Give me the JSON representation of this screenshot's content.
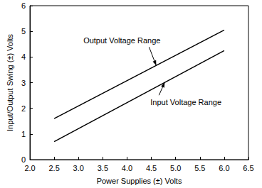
{
  "chart_data": {
    "type": "line",
    "x_label": "Power Supplies (±) Volts",
    "y_label": "Input/Output Swing (±) Volts",
    "series": [
      {
        "name": "Output Voltage Range",
        "color": "#000000",
        "x": [
          2.5,
          6.0
        ],
        "values": [
          1.6,
          5.05
        ]
      },
      {
        "name": "Input Voltage Range",
        "color": "#000000",
        "x": [
          2.5,
          6.0
        ],
        "values": [
          0.7,
          4.25
        ]
      }
    ],
    "annotations": [
      "Output Voltage Range",
      "Input Voltage Range"
    ],
    "xlim": [
      2.0,
      6.5
    ],
    "xticks": [
      {
        "value": 2,
        "label": "2.0"
      },
      2.5,
      {
        "value": 3,
        "label": "3.0"
      },
      3.5,
      {
        "value": 4,
        "label": "4.0"
      },
      4.5,
      {
        "value": 5,
        "label": "5.0"
      },
      5.5,
      {
        "value": 6,
        "label": "6.0"
      },
      6.5
    ],
    "ylim": [
      0,
      6
    ],
    "yticks": [
      0,
      1,
      2,
      3,
      4,
      5,
      6
    ],
    "grid": false
  }
}
